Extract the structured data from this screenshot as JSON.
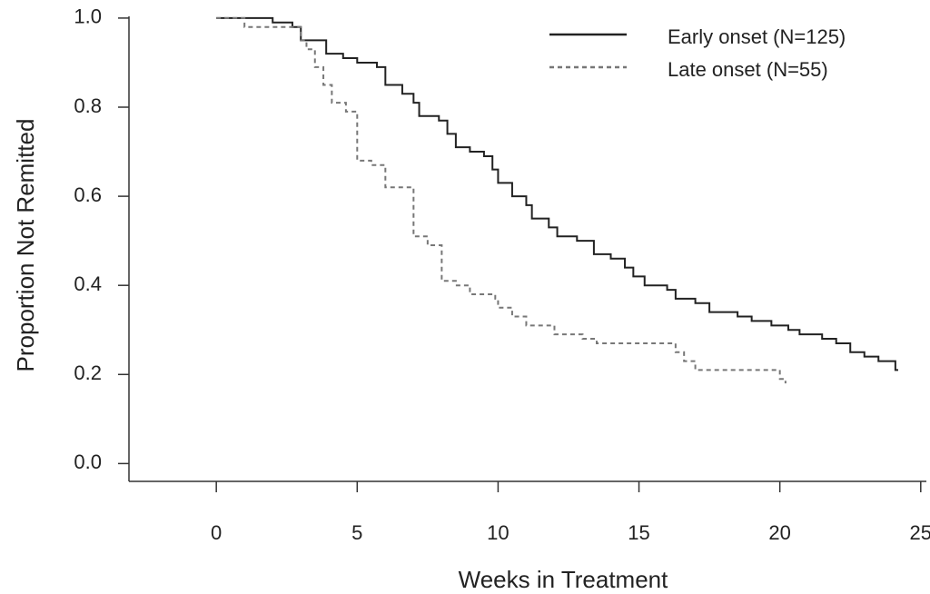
{
  "chart_data": {
    "type": "step",
    "xlabel": "Weeks in Treatment",
    "ylabel": "Proportion Not Remitted",
    "xlim": [
      -3.1,
      25.2
    ],
    "xticks": [
      0,
      5,
      10,
      15,
      20,
      25
    ],
    "ylim": [
      -0.04,
      1.01
    ],
    "yticks": [
      {
        "value": 0,
        "label": "0.0"
      },
      0.2,
      0.4,
      0.6,
      0.8,
      {
        "value": 1,
        "label": "1.0"
      }
    ],
    "legend": "upper right",
    "series": [
      {
        "name": "Early onset (N=125)",
        "color": "#222222",
        "linestyle": "solid",
        "x": [
          0,
          2,
          2.7,
          3,
          3.9,
          4.5,
          5,
          5.7,
          6,
          6.6,
          7,
          7.2,
          7.9,
          8.2,
          8.5,
          9,
          9.5,
          9.8,
          10,
          10.5,
          11,
          11.2,
          11.8,
          12.1,
          12.8,
          13.4,
          14,
          14.5,
          14.8,
          15.2,
          16,
          16.3,
          17,
          17.5,
          18.5,
          19,
          19.7,
          20.3,
          20.7,
          21.5,
          22,
          22.5,
          23,
          23.5,
          24.1,
          24.2
        ],
        "values": [
          1.0,
          0.99,
          0.98,
          0.95,
          0.92,
          0.91,
          0.9,
          0.89,
          0.85,
          0.83,
          0.81,
          0.78,
          0.77,
          0.74,
          0.71,
          0.7,
          0.69,
          0.66,
          0.63,
          0.6,
          0.58,
          0.55,
          0.53,
          0.51,
          0.5,
          0.47,
          0.46,
          0.44,
          0.42,
          0.4,
          0.39,
          0.37,
          0.36,
          0.34,
          0.33,
          0.32,
          0.31,
          0.3,
          0.29,
          0.28,
          0.27,
          0.25,
          0.24,
          0.23,
          0.21,
          0.21
        ]
      },
      {
        "name": "Late onset (N=55)",
        "color": "#777777",
        "linestyle": "dashed",
        "x": [
          0,
          1,
          3,
          3.2,
          3.5,
          3.8,
          4.1,
          4.6,
          5,
          5.5,
          6,
          7,
          7.5,
          8,
          8.5,
          9,
          9.9,
          10,
          10.5,
          11,
          12,
          13,
          13.5,
          16.3,
          16.6,
          17,
          20,
          20.2
        ],
        "values": [
          1.0,
          0.98,
          0.95,
          0.93,
          0.89,
          0.85,
          0.81,
          0.79,
          0.68,
          0.67,
          0.62,
          0.51,
          0.49,
          0.41,
          0.4,
          0.38,
          0.37,
          0.35,
          0.33,
          0.31,
          0.29,
          0.28,
          0.27,
          0.25,
          0.23,
          0.21,
          0.19,
          0.18
        ]
      }
    ]
  }
}
